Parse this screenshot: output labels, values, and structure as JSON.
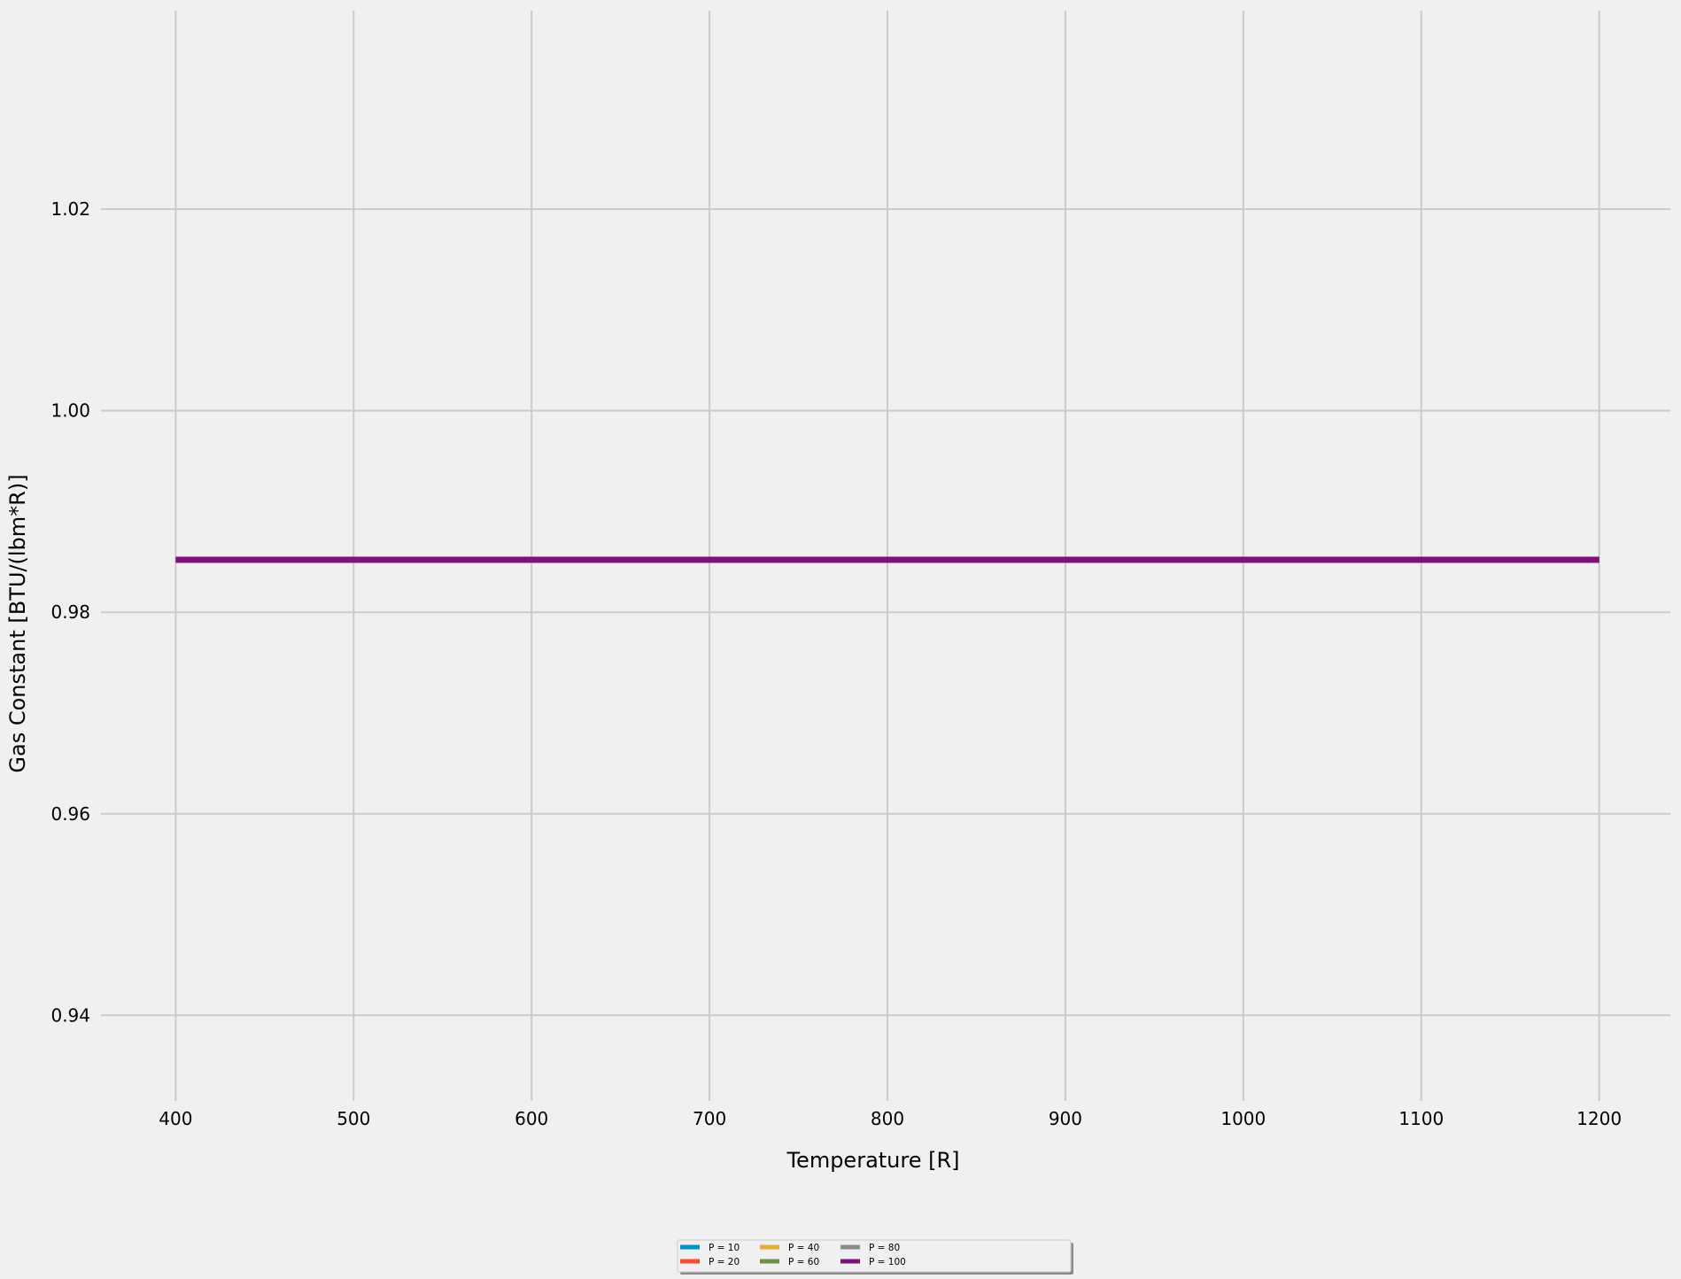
{
  "chart_data": {
    "type": "line",
    "title": "",
    "xlabel": "Temperature [R]",
    "ylabel": "Gas Constant [BTU/(lbm*R)]",
    "xlim": [
      358,
      1240
    ],
    "ylim": [
      0.9315,
      1.0397
    ],
    "xticks": [
      400,
      500,
      600,
      700,
      800,
      900,
      1000,
      1100,
      1200
    ],
    "yticks": [
      0.94,
      0.96,
      0.98,
      1.0,
      1.02
    ],
    "ytick_labels": [
      "0.94",
      "0.96",
      "0.98",
      "1.00",
      "1.02"
    ],
    "grid": true,
    "legend_placement": "bottom-center, below plot",
    "legend_columns": 5,
    "series": [
      {
        "name": "P = 10",
        "color": "#008fd5",
        "x": [
          400,
          1200
        ],
        "y": [
          0.9852,
          0.9852
        ]
      },
      {
        "name": "P = 20",
        "color": "#fc4f30",
        "x": [
          400,
          1200
        ],
        "y": [
          0.9852,
          0.9852
        ]
      },
      {
        "name": "P = 40",
        "color": "#e5ae38",
        "x": [
          400,
          1200
        ],
        "y": [
          0.9852,
          0.9852
        ]
      },
      {
        "name": "P = 60",
        "color": "#6d904f",
        "x": [
          400,
          1200
        ],
        "y": [
          0.9852,
          0.9852
        ]
      },
      {
        "name": "P = 80",
        "color": "#8b8b8b",
        "x": [
          400,
          1200
        ],
        "y": [
          0.9852,
          0.9852
        ]
      },
      {
        "name": "P = 100",
        "color": "#810f7c",
        "x": [
          400,
          1200
        ],
        "y": [
          0.9852,
          0.9852
        ]
      }
    ]
  }
}
